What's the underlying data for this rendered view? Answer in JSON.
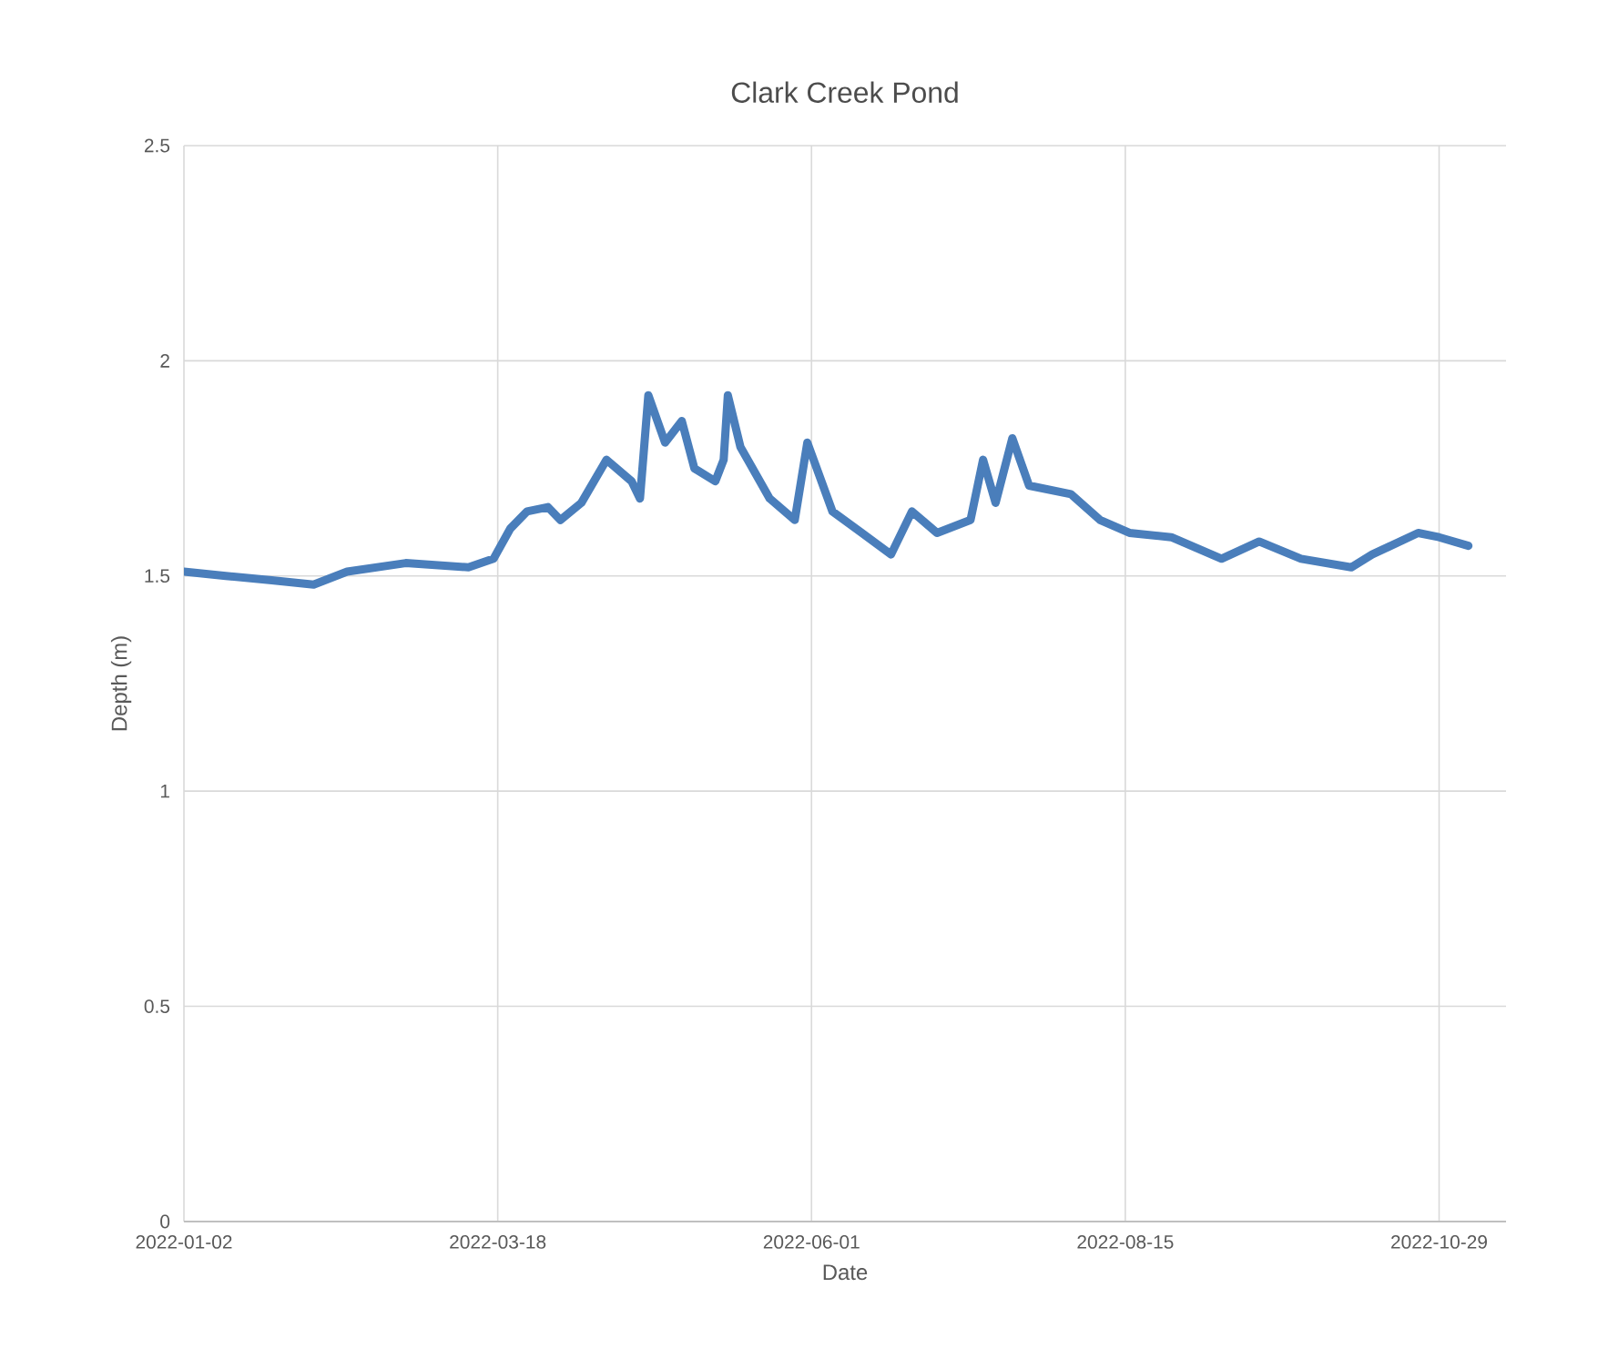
{
  "chart_data": {
    "type": "line",
    "title": "Clark Creek Pond",
    "xlabel": "Date",
    "ylabel": "Depth (m)",
    "x": [
      "2022-01-02",
      "2022-01-12",
      "2022-01-23",
      "2022-02-02",
      "2022-02-10",
      "2022-02-24",
      "2022-03-11",
      "2022-03-17",
      "2022-03-21",
      "2022-03-25",
      "2022-03-30",
      "2022-04-02",
      "2022-04-07",
      "2022-04-13",
      "2022-04-19",
      "2022-04-21",
      "2022-04-23",
      "2022-04-27",
      "2022-05-01",
      "2022-05-04",
      "2022-05-09",
      "2022-05-11",
      "2022-05-12",
      "2022-05-15",
      "2022-05-22",
      "2022-05-28",
      "2022-05-31",
      "2022-06-06",
      "2022-06-13",
      "2022-06-20",
      "2022-06-25",
      "2022-07-01",
      "2022-07-09",
      "2022-07-12",
      "2022-07-15",
      "2022-07-19",
      "2022-07-23",
      "2022-08-02",
      "2022-08-09",
      "2022-08-16",
      "2022-08-26",
      "2022-09-07",
      "2022-09-16",
      "2022-09-26",
      "2022-10-08",
      "2022-10-13",
      "2022-10-24",
      "2022-10-29",
      "2022-11-05"
    ],
    "series": [
      {
        "color": "#4a7ebb",
        "values": [
          1.51,
          1.5,
          1.49,
          1.48,
          1.51,
          1.53,
          1.52,
          1.54,
          1.61,
          1.65,
          1.66,
          1.63,
          1.67,
          1.77,
          1.72,
          1.68,
          1.92,
          1.81,
          1.86,
          1.75,
          1.72,
          1.77,
          1.92,
          1.8,
          1.68,
          1.63,
          1.81,
          1.65,
          1.6,
          1.55,
          1.65,
          1.6,
          1.63,
          1.77,
          1.67,
          1.82,
          1.71,
          1.69,
          1.63,
          1.6,
          1.59,
          1.54,
          1.58,
          1.54,
          1.52,
          1.55,
          1.6,
          1.59,
          1.57
        ]
      }
    ],
    "xlim": [
      "2022-01-02",
      "2022-11-14"
    ],
    "xticks": [
      "2022-01-02",
      "2022-03-18",
      "2022-06-01",
      "2022-08-15",
      "2022-10-29"
    ],
    "ylim": [
      0,
      2.5
    ],
    "yticks": [
      0,
      0.5,
      1,
      1.5,
      2,
      2.5
    ],
    "grid": true,
    "marker": "none",
    "line_style": "solid"
  }
}
